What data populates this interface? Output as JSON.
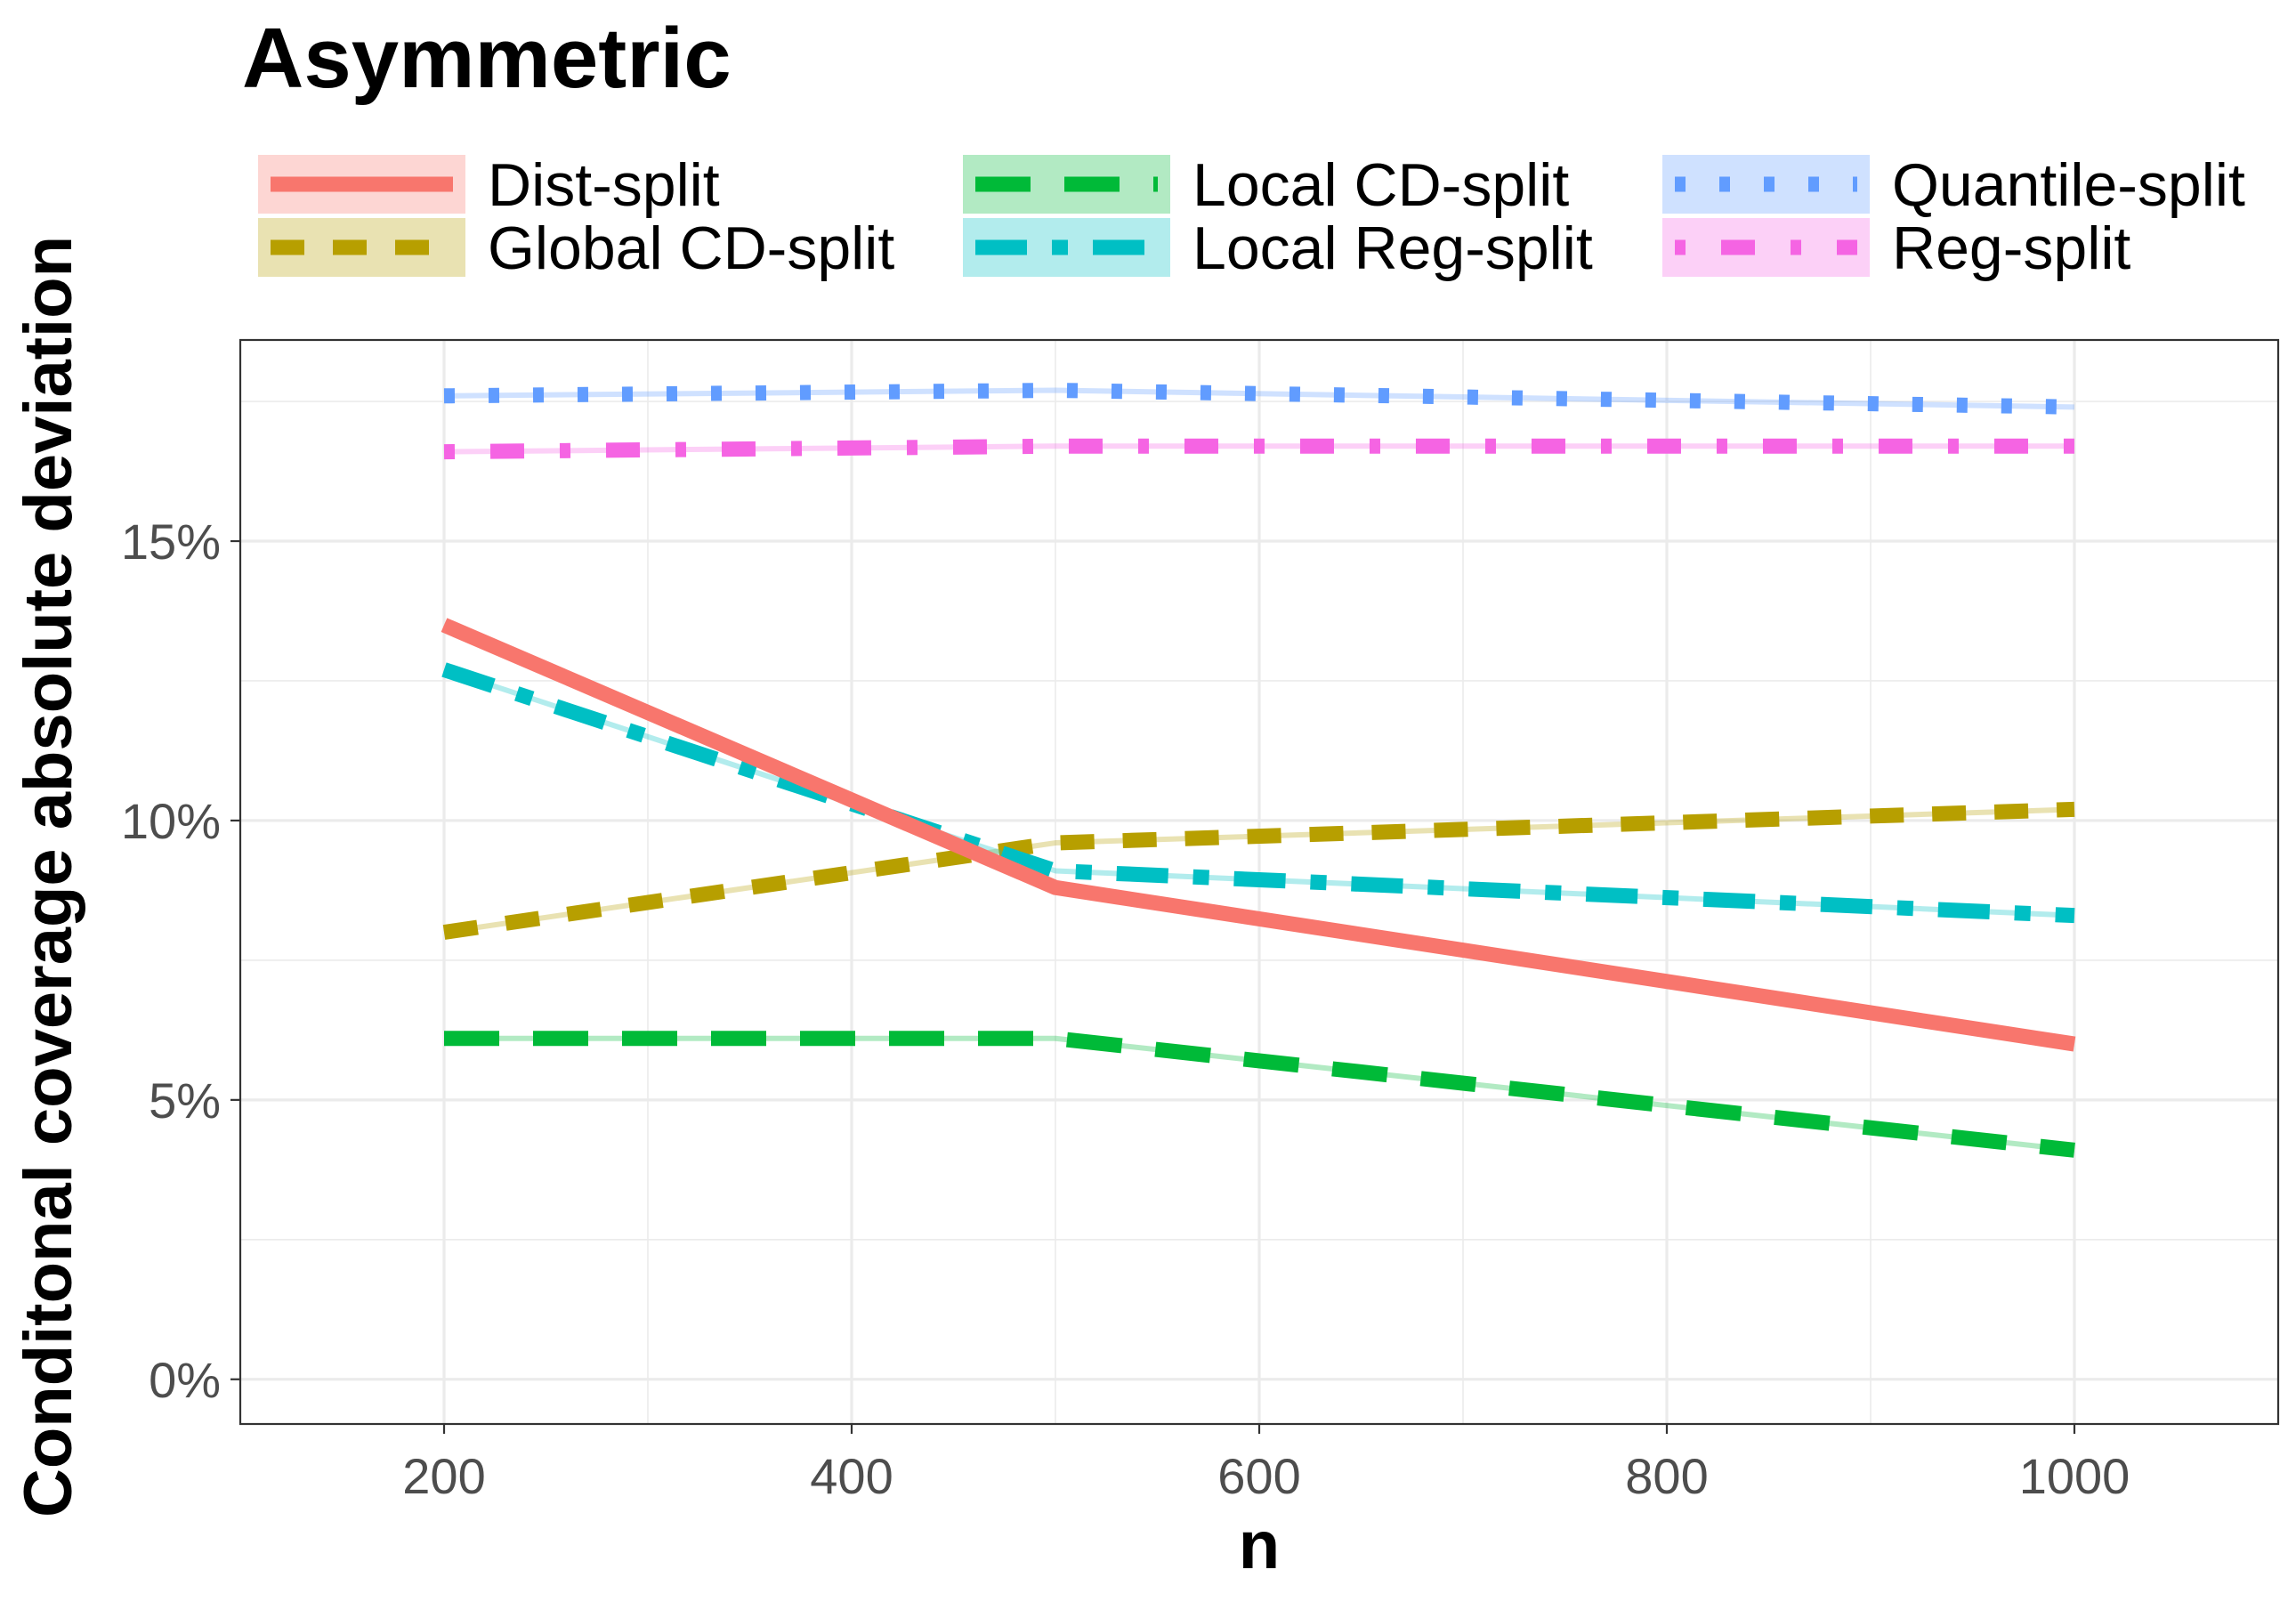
{
  "chart_data": {
    "type": "line",
    "title": "Asymmetric",
    "xlabel": "n",
    "ylabel": "Conditonal coverage absolute deviation",
    "x": [
      200,
      500,
      1000
    ],
    "xlim": [
      100,
      1100
    ],
    "ylim": [
      -0.8,
      18.6
    ],
    "x_ticks": [
      200,
      400,
      600,
      800,
      1000
    ],
    "y_ticks": [
      0,
      5,
      10,
      15
    ],
    "x_tick_labels": [
      "200",
      "400",
      "600",
      "800",
      "1000"
    ],
    "y_tick_labels": [
      "0%",
      "5%",
      "10%",
      "15%"
    ],
    "grid": true,
    "legend_position": "top",
    "series": [
      {
        "name": "Dist-split",
        "values": [
          13.5,
          8.8,
          6.0
        ],
        "color": "#F8766D",
        "linetype": "solid"
      },
      {
        "name": "Global CD-split",
        "values": [
          8.0,
          9.6,
          10.2
        ],
        "color": "#B79F00",
        "linetype": "dashed"
      },
      {
        "name": "Local CD-split",
        "values": [
          6.1,
          6.1,
          4.1
        ],
        "color": "#00BA38",
        "linetype": "longdash"
      },
      {
        "name": "Local Reg-split",
        "values": [
          12.7,
          9.1,
          8.3
        ],
        "color": "#00BFC4",
        "linetype": "twodash"
      },
      {
        "name": "Quantile-split",
        "values": [
          17.6,
          17.7,
          17.4
        ],
        "color": "#619CFF",
        "linetype": "dotted"
      },
      {
        "name": "Reg-split",
        "values": [
          16.6,
          16.7,
          16.7
        ],
        "color": "#F564E3",
        "linetype": "dotdash"
      }
    ]
  }
}
